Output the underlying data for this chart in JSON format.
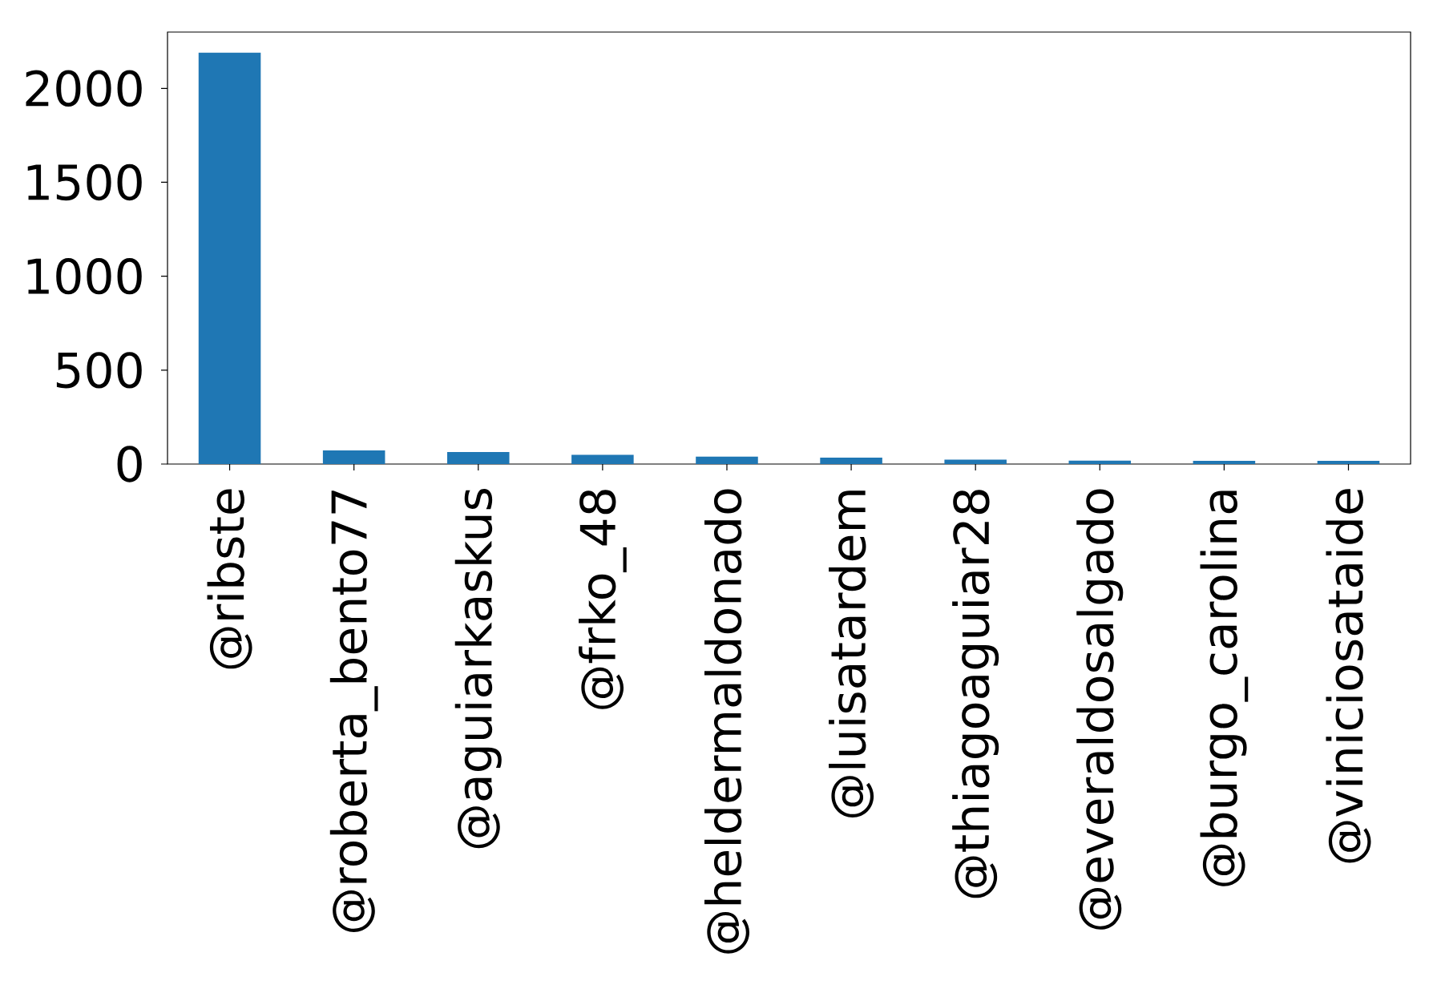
{
  "chart_data": {
    "type": "bar",
    "categories": [
      "@ribste",
      "@roberta_bento77",
      "@aguiarkaskus",
      "@frko_48",
      "@heldermaldonado",
      "@luisatardem",
      "@thiagoaguiar28",
      "@everaldosalgado",
      "@burgo_carolina",
      "@viniciosataide"
    ],
    "values": [
      2190,
      73,
      64,
      49,
      39,
      34,
      24,
      18,
      17,
      17
    ],
    "color": "#1f77b4",
    "ylim": [
      0,
      2300
    ],
    "yticks": [
      0,
      500,
      1000,
      1500,
      2000
    ]
  }
}
